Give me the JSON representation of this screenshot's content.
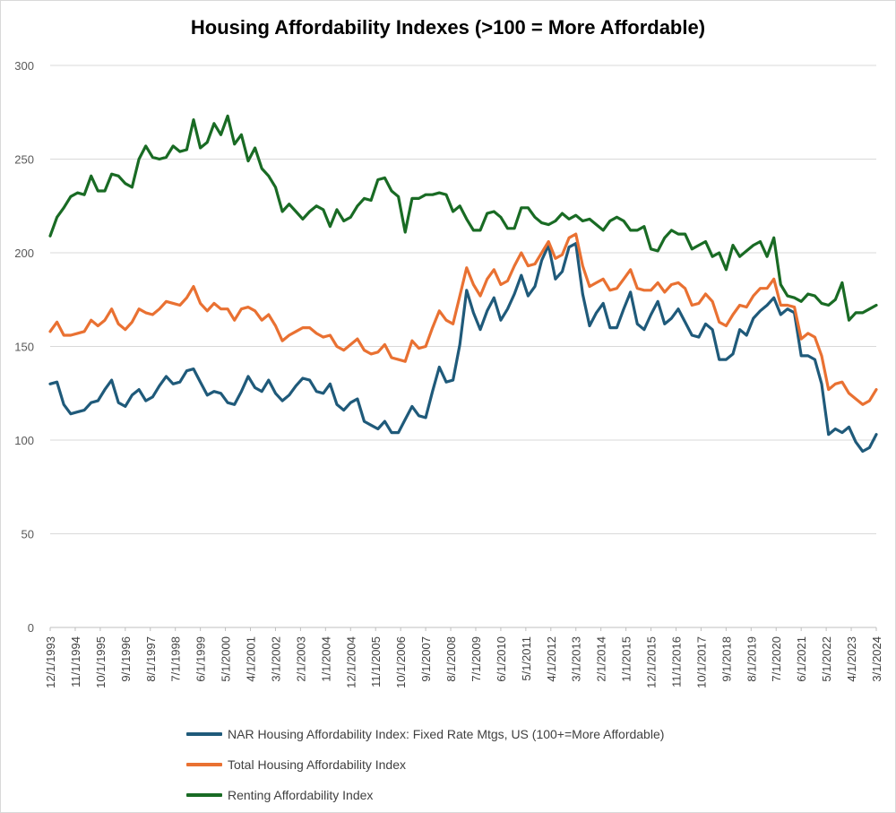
{
  "chart_data": {
    "type": "line",
    "title": "Housing Affordability Indexes (>100 = More Affordable)",
    "xlabel": "",
    "ylabel": "",
    "ylim": [
      0,
      300
    ],
    "yticks": [
      0,
      50,
      100,
      150,
      200,
      250,
      300
    ],
    "grid": true,
    "legend_position": "bottom",
    "x_tick_labels": [
      "12/1/1993",
      "11/1/1994",
      "10/1/1995",
      "9/1/1996",
      "8/1/1997",
      "7/1/1998",
      "6/1/1999",
      "5/1/2000",
      "4/1/2001",
      "3/1/2002",
      "2/1/2003",
      "1/1/2004",
      "12/1/2004",
      "11/1/2005",
      "10/1/2006",
      "9/1/2007",
      "8/1/2008",
      "7/1/2009",
      "6/1/2010",
      "5/1/2011",
      "4/1/2012",
      "3/1/2013",
      "2/1/2014",
      "1/1/2015",
      "12/1/2015",
      "11/1/2016",
      "10/1/2017",
      "9/1/2018",
      "8/1/2019",
      "7/1/2020",
      "6/1/2021",
      "5/1/2022",
      "4/1/2023",
      "3/1/2024"
    ],
    "series": [
      {
        "name": "NAR Housing Affordability Index: Fixed Rate Mtgs, US (100+=More Affordable)",
        "color": "#1f5a7a",
        "values": [
          130,
          131,
          119,
          114,
          115,
          116,
          120,
          121,
          127,
          132,
          120,
          118,
          124,
          127,
          121,
          123,
          129,
          134,
          130,
          131,
          137,
          138,
          131,
          124,
          126,
          125,
          120,
          119,
          126,
          134,
          128,
          126,
          132,
          125,
          121,
          124,
          129,
          133,
          132,
          126,
          125,
          130,
          119,
          116,
          120,
          122,
          110,
          108,
          106,
          110,
          104,
          104,
          111,
          118,
          113,
          112,
          126,
          139,
          131,
          132,
          151,
          180,
          168,
          159,
          169,
          176,
          164,
          170,
          178,
          188,
          177,
          182,
          196,
          204,
          186,
          190,
          203,
          205,
          178,
          161,
          168,
          173,
          160,
          160,
          170,
          179,
          162,
          159,
          167,
          174,
          162,
          165,
          170,
          163,
          156,
          155,
          162,
          159,
          143,
          143,
          146,
          159,
          156,
          165,
          169,
          172,
          176,
          167,
          170,
          168,
          145,
          145,
          143,
          130,
          103,
          106,
          104,
          107,
          99,
          94,
          96,
          103
        ]
      },
      {
        "name": "Total Housing Affordability Index",
        "color": "#e97132",
        "values": [
          158,
          163,
          156,
          156,
          157,
          158,
          164,
          161,
          164,
          170,
          162,
          159,
          163,
          170,
          168,
          167,
          170,
          174,
          173,
          172,
          176,
          182,
          173,
          169,
          173,
          170,
          170,
          164,
          170,
          171,
          169,
          164,
          167,
          161,
          153,
          156,
          158,
          160,
          160,
          157,
          155,
          156,
          150,
          148,
          151,
          154,
          148,
          146,
          147,
          151,
          144,
          143,
          142,
          153,
          149,
          150,
          160,
          169,
          164,
          162,
          177,
          192,
          183,
          177,
          186,
          191,
          183,
          185,
          193,
          200,
          193,
          194,
          200,
          206,
          197,
          199,
          208,
          210,
          193,
          182,
          184,
          186,
          180,
          181,
          186,
          191,
          181,
          180,
          180,
          184,
          179,
          183,
          184,
          181,
          172,
          173,
          178,
          174,
          163,
          161,
          167,
          172,
          171,
          177,
          181,
          181,
          186,
          172,
          172,
          171,
          154,
          157,
          155,
          145,
          127,
          130,
          131,
          125,
          122,
          119,
          121,
          127
        ]
      },
      {
        "name": "Renting Affordability Index",
        "color": "#196b24",
        "values": [
          209,
          219,
          224,
          230,
          232,
          231,
          241,
          233,
          233,
          242,
          241,
          237,
          235,
          250,
          257,
          251,
          250,
          251,
          257,
          254,
          255,
          271,
          256,
          259,
          269,
          263,
          273,
          258,
          263,
          249,
          256,
          245,
          241,
          235,
          222,
          226,
          222,
          218,
          222,
          225,
          223,
          214,
          223,
          217,
          219,
          225,
          229,
          228,
          239,
          240,
          233,
          230,
          211,
          229,
          229,
          231,
          231,
          232,
          231,
          222,
          225,
          218,
          212,
          212,
          221,
          222,
          219,
          213,
          213,
          224,
          224,
          219,
          216,
          215,
          217,
          221,
          218,
          220,
          217,
          218,
          215,
          212,
          217,
          219,
          217,
          212,
          212,
          214,
          202,
          201,
          208,
          212,
          210,
          210,
          202,
          204,
          206,
          198,
          200,
          191,
          204,
          198,
          201,
          204,
          206,
          198,
          208,
          183,
          177,
          176,
          174,
          178,
          177,
          173,
          172,
          175,
          184,
          164,
          168,
          168,
          170,
          172
        ]
      }
    ]
  }
}
